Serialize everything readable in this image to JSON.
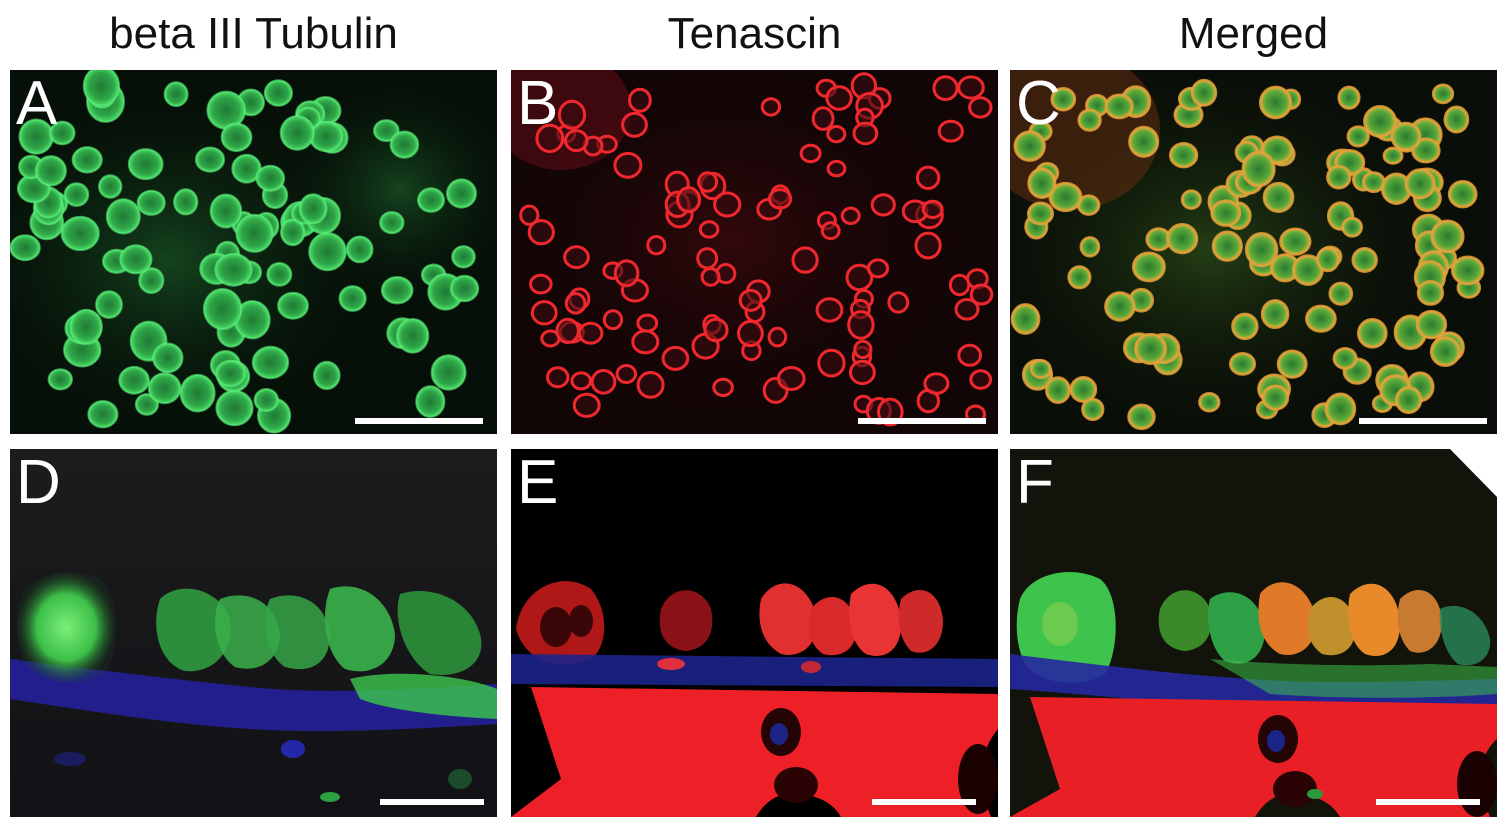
{
  "columns": [
    {
      "title": "beta III Tubulin"
    },
    {
      "title": "Tenascin"
    },
    {
      "title": "Merged"
    }
  ],
  "panels": {
    "a": {
      "letter": "A",
      "stain": "green"
    },
    "b": {
      "letter": "B",
      "stain": "red"
    },
    "c": {
      "letter": "C",
      "stain": "merged"
    },
    "d": {
      "letter": "D",
      "stain": "green+blue"
    },
    "e": {
      "letter": "E",
      "stain": "red+blue"
    },
    "f": {
      "letter": "F",
      "stain": "merged+blue"
    }
  },
  "colors": {
    "green": "#3cc85a",
    "red": "#e8202a",
    "blue": "#2a2a9a",
    "orange": "#e0a040",
    "background": "#0a0a0a",
    "scale_bar": "#ffffff",
    "title_text": "#111111"
  }
}
